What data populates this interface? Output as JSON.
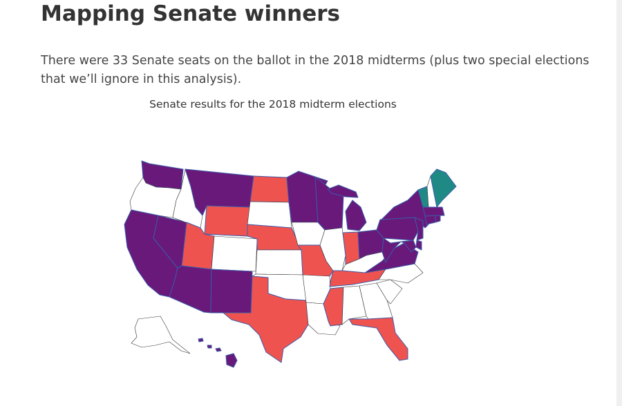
{
  "header": {
    "title": "Mapping Senate winners",
    "intro": "There were 33 Senate seats on the ballot in the 2018 midterms (plus two special elections that we’ll ignore in this analysis)."
  },
  "map": {
    "title": "Senate results for the 2018 midterm elections",
    "colors": {
      "democrat": "#68197a",
      "republican": "#ef5350",
      "independent": "#1f8a85",
      "none": "#ffffff",
      "border": "#3b5ba8"
    },
    "results": {
      "WA": "democrat",
      "OR": "none",
      "CA": "democrat",
      "NV": "democrat",
      "ID": "none",
      "MT": "democrat",
      "WY": "republican",
      "UT": "republican",
      "AZ": "democrat",
      "NM": "democrat",
      "CO": "none",
      "ND": "republican",
      "SD": "none",
      "NE": "republican",
      "KS": "none",
      "OK": "none",
      "TX": "republican",
      "MN": "democrat",
      "IA": "none",
      "MO": "republican",
      "AR": "none",
      "LA": "none",
      "WI": "democrat",
      "IL": "none",
      "MI": "democrat",
      "IN": "republican",
      "OH": "democrat",
      "KY": "none",
      "TN": "republican",
      "MS": "republican",
      "AL": "none",
      "GA": "none",
      "FL": "republican",
      "SC": "none",
      "NC": "none",
      "VA": "democrat",
      "WV": "democrat",
      "PA": "democrat",
      "NY": "democrat",
      "VT": "independent",
      "NH": "none",
      "ME": "independent",
      "MA": "democrat",
      "CT": "democrat",
      "RI": "democrat",
      "NJ": "democrat",
      "DE": "democrat",
      "MD": "democrat",
      "AK": "none",
      "HI": "democrat"
    }
  }
}
